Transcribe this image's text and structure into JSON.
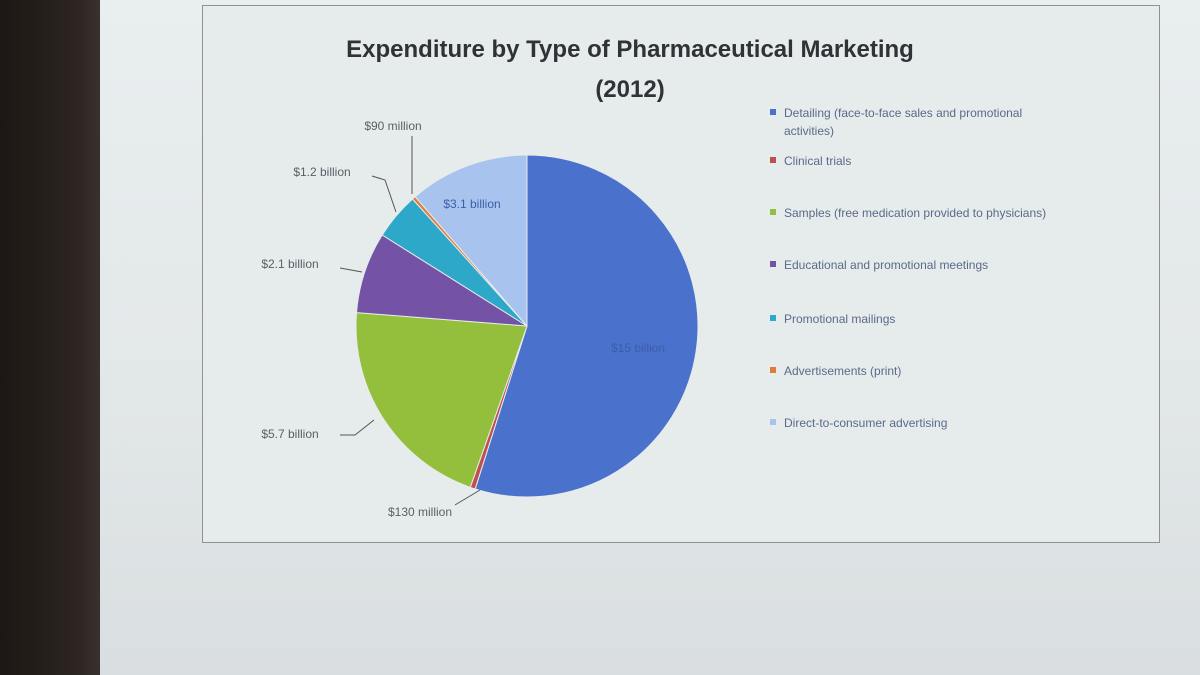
{
  "chart_data": {
    "type": "pie",
    "title": "Expenditure by Type of Pharmaceutical Marketing",
    "subtitle": "(2012)",
    "legend_position": "right",
    "slices": [
      {
        "label": "Detailing (face-to-face sales and promotional activities)",
        "value": 15000,
        "data_label": "$15 billion",
        "color": "#4a72cc"
      },
      {
        "label": "Clinical trials",
        "value": 130,
        "data_label": "$130 million",
        "color": "#c0504d"
      },
      {
        "label": "Samples (free medication provided to physicians)",
        "value": 5700,
        "data_label": "$5.7  billion",
        "color": "#94bf3c"
      },
      {
        "label": "Educational and promotional meetings",
        "value": 2100,
        "data_label": "$2.1 billion",
        "color": "#7453a6"
      },
      {
        "label": "Promotional mailings",
        "value": 1200,
        "data_label": "$1.2 billion",
        "color": "#2ea8c9"
      },
      {
        "label": "Advertisements (print)",
        "value": 90,
        "data_label": "$90 million",
        "color": "#e07b39"
      },
      {
        "label": "Direct-to-consumer advertising",
        "value": 3100,
        "data_label": "$3.1 billion",
        "color": "#a9c3ef"
      }
    ]
  }
}
